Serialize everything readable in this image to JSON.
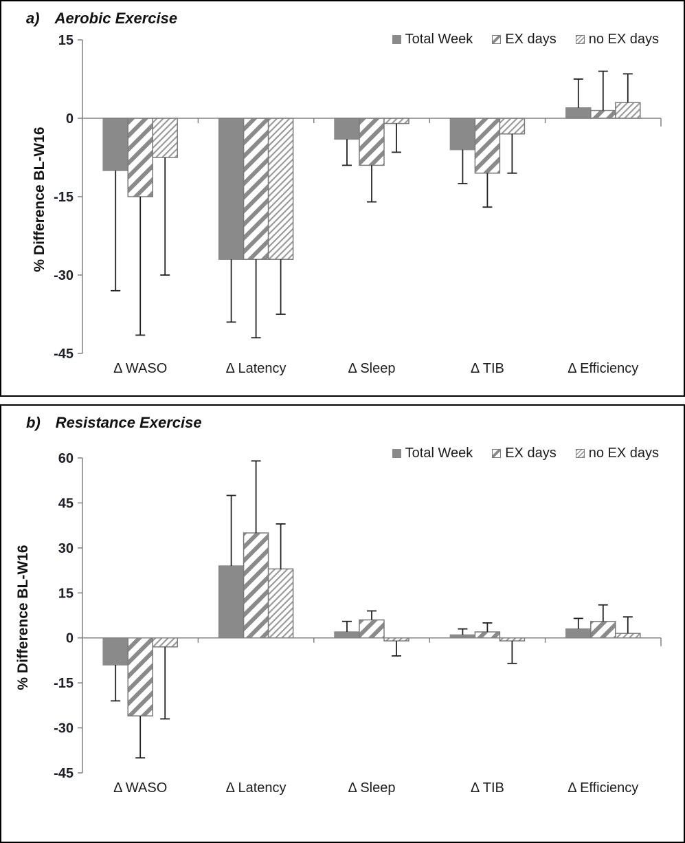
{
  "colors": {
    "bar_fill": "#8a8a8a",
    "hatch_stripe": "#8a8a8a",
    "hatch_fine_stripe": "#989898",
    "bar_border": "#7a7a7a",
    "axis": "#808080",
    "error_bar": "#222222",
    "tick_text": "#1f1f2a",
    "text": "#1c1c1c"
  },
  "chart_data": [
    {
      "type": "bar",
      "title_prefix": "a)",
      "title": "Aerobic Exercise",
      "ylabel": "% Difference BL-W16",
      "legend": [
        "Total Week",
        "EX days",
        "no EX days"
      ],
      "legend_position": "top-right",
      "grid": false,
      "categories": [
        "Δ WASO",
        "Δ Latency",
        "Δ Sleep",
        "Δ TIB",
        "Δ Efficiency"
      ],
      "ylim": [
        -45,
        15
      ],
      "yticks": [
        15,
        0,
        -15,
        -30,
        -45
      ],
      "series": [
        {
          "name": "Total Week",
          "marker": "solid",
          "values": [
            -10,
            -27,
            -4,
            -6,
            2
          ],
          "errors": [
            23,
            12,
            5,
            6.5,
            5.5
          ]
        },
        {
          "name": "EX days",
          "marker": "hatch-wide",
          "values": [
            -15,
            -27,
            -9,
            -10.5,
            1.5
          ],
          "errors": [
            26.5,
            15,
            7,
            6.5,
            7.5
          ]
        },
        {
          "name": "no EX days",
          "marker": "hatch-fine",
          "values": [
            -7.5,
            -27,
            -1,
            -3,
            3
          ],
          "errors": [
            22.5,
            10.5,
            5.5,
            7.5,
            5.5
          ]
        }
      ]
    },
    {
      "type": "bar",
      "title_prefix": "b)",
      "title": "Resistance Exercise",
      "ylabel": "% Difference BL-W16",
      "legend": [
        "Total Week",
        "EX days",
        "no EX days"
      ],
      "legend_position": "top-right",
      "grid": false,
      "categories": [
        "Δ WASO",
        "Δ Latency",
        "Δ Sleep",
        "Δ TIB",
        "Δ Efficiency"
      ],
      "ylim": [
        -45,
        60
      ],
      "yticks": [
        60,
        45,
        30,
        15,
        0,
        -15,
        -30,
        -45
      ],
      "series": [
        {
          "name": "Total Week",
          "marker": "solid",
          "values": [
            -9,
            24,
            2,
            1,
            3
          ],
          "errors": [
            12,
            23.5,
            3.5,
            2,
            3.5
          ]
        },
        {
          "name": "EX days",
          "marker": "hatch-wide",
          "values": [
            -26,
            35,
            6,
            2,
            5.5
          ],
          "errors": [
            14,
            24,
            3,
            3,
            5.5
          ]
        },
        {
          "name": "no EX days",
          "marker": "hatch-fine",
          "values": [
            -3,
            23,
            -1,
            -1,
            1.5
          ],
          "errors": [
            24,
            15,
            5,
            7.5,
            5.5
          ]
        }
      ]
    }
  ]
}
